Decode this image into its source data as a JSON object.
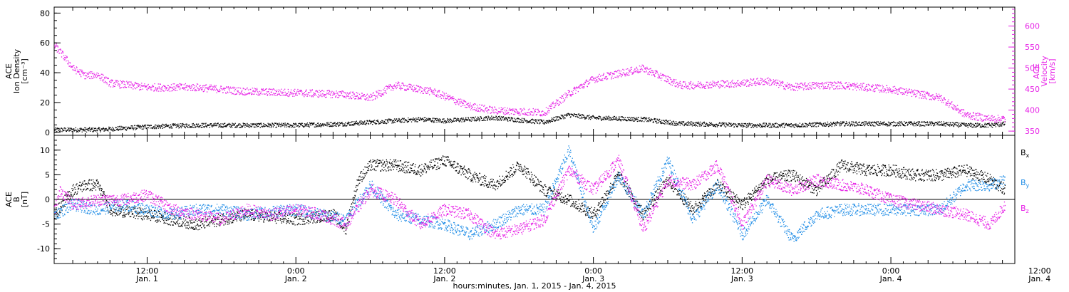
{
  "chart_data": [
    {
      "type": "scatter",
      "panel": "top",
      "ylabel_lines": [
        "ACE",
        "Ion Density",
        "[cm⁻³]"
      ],
      "ylim": [
        -2,
        84
      ],
      "yticks": [
        0,
        20,
        40,
        60,
        80
      ],
      "y2label_lines": [
        "ACE",
        "Velocity",
        "[km/s]"
      ],
      "y2lim": [
        340,
        645
      ],
      "y2ticks": [
        350,
        400,
        450,
        500,
        550,
        600
      ],
      "xlim_hours": [
        4.5,
        82
      ],
      "series": [
        {
          "axis": "left",
          "color": "#000000",
          "x_hours": [
            4.5,
            8,
            12,
            16,
            20,
            24,
            28,
            32,
            34,
            36,
            40,
            44,
            46,
            48,
            52,
            55,
            56,
            60,
            64,
            68,
            72,
            76,
            78,
            80,
            81.2
          ],
          "values": [
            2,
            2,
            4,
            5,
            5,
            5,
            6,
            8,
            9,
            8,
            10,
            7,
            12,
            10,
            9,
            6,
            6,
            5,
            5,
            6,
            6,
            6,
            5,
            5,
            6
          ]
        },
        {
          "axis": "right",
          "color": "#e61ee6",
          "x_hours": [
            4.5,
            5.5,
            6,
            7,
            8,
            9,
            12,
            16,
            20,
            24,
            26,
            28,
            30,
            32,
            35,
            38,
            40,
            44,
            46,
            48,
            52,
            55,
            56,
            60,
            62,
            64,
            66,
            68,
            72,
            76,
            78,
            80,
            81.2
          ],
          "values": [
            555,
            520,
            500,
            483,
            485,
            465,
            455,
            455,
            445,
            442,
            440,
            438,
            430,
            460,
            445,
            410,
            400,
            395,
            440,
            475,
            500,
            460,
            460,
            465,
            470,
            455,
            460,
            460,
            450,
            430,
            390,
            380,
            380
          ]
        }
      ]
    },
    {
      "type": "scatter",
      "panel": "bottom",
      "ylabel_lines": [
        "ACE",
        "B",
        "[nT]"
      ],
      "ylim": [
        -13,
        13
      ],
      "yticks": [
        -10,
        -5,
        0,
        5,
        10
      ],
      "xlim_hours": [
        4.5,
        82
      ],
      "legend": [
        "Bx",
        "By",
        "Bz"
      ],
      "series": [
        {
          "name": "Bx",
          "color": "#000000",
          "x_hours": [
            4.5,
            6,
            7,
            8,
            9,
            12,
            14,
            16,
            20,
            24,
            27,
            28,
            29,
            30,
            32,
            34,
            36,
            38,
            40,
            42,
            44,
            46,
            48,
            50,
            52,
            54,
            56,
            58,
            60,
            62,
            64,
            66,
            68,
            70,
            72,
            74,
            76,
            78,
            80,
            81.2
          ],
          "values": [
            -3,
            2,
            3,
            3,
            -2,
            -3,
            -4,
            -5,
            -3,
            -4,
            -3,
            -6,
            4,
            7,
            7,
            6,
            8,
            5,
            3,
            7,
            2,
            0,
            -3,
            5,
            -3,
            4,
            -2,
            3,
            -1,
            4,
            5,
            2,
            7,
            6,
            6,
            5,
            5,
            6,
            4,
            2
          ]
        },
        {
          "name": "By",
          "color": "#1e8ce6",
          "x_hours": [
            4.5,
            6,
            8,
            10,
            12,
            14,
            16,
            18,
            20,
            24,
            26,
            28,
            30,
            32,
            34,
            36,
            38,
            40,
            42,
            44,
            46,
            48,
            50,
            52,
            54,
            56,
            58,
            60,
            62,
            64,
            66,
            68,
            72,
            76,
            78,
            80,
            81.2
          ],
          "values": [
            -3,
            -1,
            -2,
            -1,
            -2,
            -3,
            -2,
            -2,
            -3,
            -2,
            -3,
            -4,
            3,
            -3,
            -4,
            -5,
            -7,
            -5,
            -2,
            -2,
            10,
            -6,
            5,
            -3,
            8,
            -4,
            3,
            -7,
            0,
            -8,
            -3,
            -2,
            -2,
            -2,
            3,
            3,
            4
          ]
        },
        {
          "name": "Bz",
          "color": "#e61ee6",
          "x_hours": [
            4.5,
            5,
            6,
            8,
            10,
            12,
            14,
            16,
            18,
            20,
            22,
            24,
            26,
            28,
            30,
            32,
            34,
            36,
            38,
            40,
            42,
            44,
            46,
            48,
            50,
            52,
            54,
            56,
            58,
            60,
            62,
            64,
            66,
            68,
            70,
            72,
            74,
            76,
            78,
            80,
            81.2
          ],
          "values": [
            -2,
            2,
            -1,
            0,
            0,
            1,
            -2,
            -3,
            -4,
            -2,
            -3,
            -2,
            -3,
            -5,
            2,
            0,
            -5,
            -2,
            -3,
            -7,
            -6,
            -4,
            6,
            2,
            8,
            -6,
            4,
            3,
            7,
            -5,
            4,
            2,
            4,
            3,
            2,
            0,
            -1,
            -2,
            -3,
            -5,
            -1
          ]
        }
      ]
    }
  ],
  "xaxis": {
    "tick_labels": [
      {
        "hour": 12,
        "time": "12:00",
        "day": "Jan. 1"
      },
      {
        "hour": 24,
        "time": "0:00",
        "day": "Jan. 2"
      },
      {
        "hour": 36,
        "time": "12:00",
        "day": "Jan. 2"
      },
      {
        "hour": 48,
        "time": "0:00",
        "day": "Jan. 3"
      },
      {
        "hour": 60,
        "time": "12:00",
        "day": "Jan. 3"
      },
      {
        "hour": 72,
        "time": "0:00",
        "day": "Jan. 4"
      },
      {
        "hour": 84,
        "time": "12:00",
        "day": "Jan. 4"
      }
    ],
    "xlabel": "hours:minutes, Jan.  1, 2015 - Jan.  4, 2015"
  }
}
